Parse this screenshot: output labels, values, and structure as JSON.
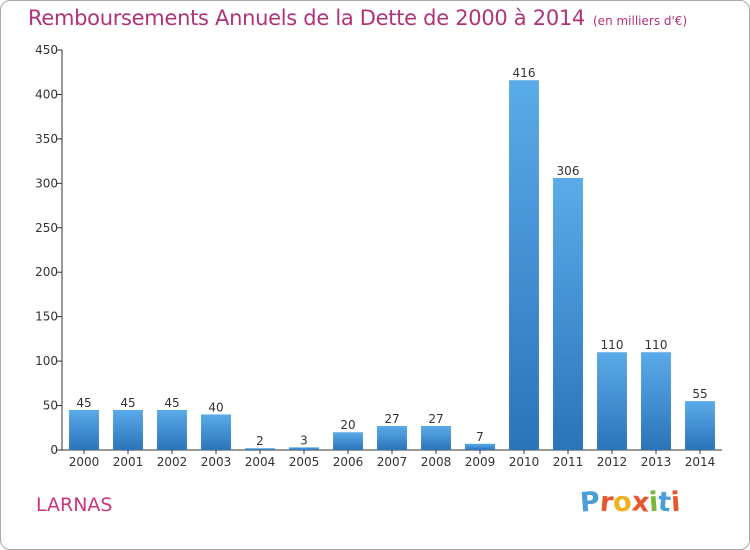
{
  "chart_data": {
    "type": "bar",
    "title": "Remboursements Annuels de la Dette de 2000 à 2014",
    "subtitle": "(en milliers d'€)",
    "categories": [
      "2000",
      "2001",
      "2002",
      "2003",
      "2004",
      "2005",
      "2006",
      "2007",
      "2008",
      "2009",
      "2010",
      "2011",
      "2012",
      "2013",
      "2014"
    ],
    "values": [
      45,
      45,
      45,
      40,
      2,
      3,
      20,
      27,
      27,
      7,
      416,
      306,
      110,
      110,
      55
    ],
    "ylim": [
      0,
      450
    ],
    "yticks": [
      0,
      50,
      100,
      150,
      200,
      250,
      300,
      350,
      400,
      450
    ],
    "grid": false,
    "bar_color": "#3f8fd6",
    "bar_color_light": "#5aabea",
    "bar_color_dark": "#2a74b8",
    "title_color": "#b0337a"
  },
  "footer": {
    "place": "LARNAS",
    "logo_letters": [
      "P",
      "r",
      "o",
      "x",
      "i",
      "t",
      "i"
    ],
    "logo_colors": [
      "#4a9fd8",
      "#e8562f",
      "#f2b01e",
      "#e8562f",
      "#78b83c",
      "#4a9fd8",
      "#e8562f"
    ]
  }
}
